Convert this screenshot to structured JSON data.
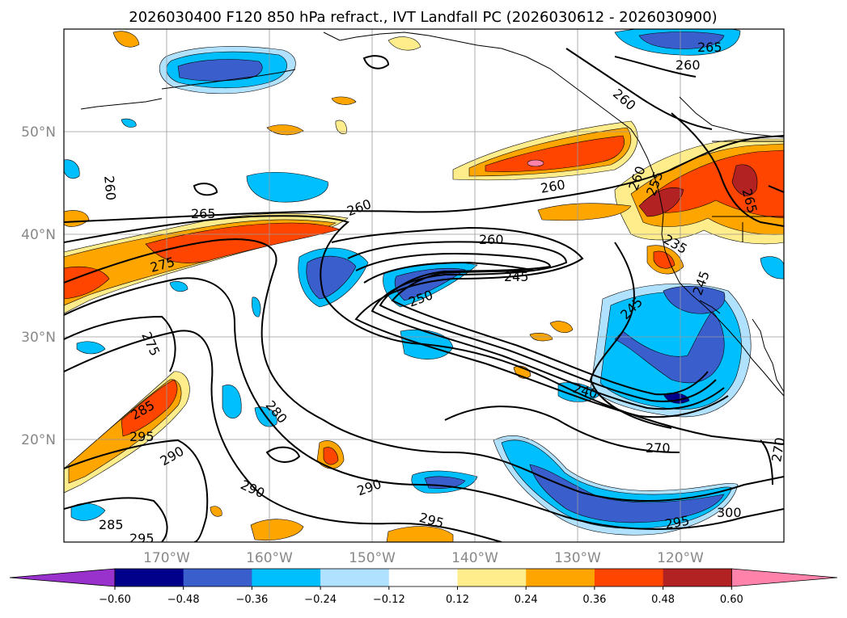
{
  "title": "2026030400 F120 850 hPa refract., IVT Landfall PC (2026030612 - 2026030900)",
  "map": {
    "lon_labels": [
      "170°W",
      "160°W",
      "150°W",
      "140°W",
      "130°W",
      "120°W"
    ],
    "lat_labels": [
      "50°N",
      "40°N",
      "30°N",
      "20°N"
    ],
    "contour_labels": [
      "265",
      "260",
      "260",
      "260",
      "260",
      "260",
      "265",
      "260",
      "260",
      "245",
      "250",
      "265",
      "275",
      "275",
      "285",
      "295",
      "290",
      "280",
      "290",
      "290",
      "295",
      "285",
      "295",
      "240",
      "245",
      "245",
      "270",
      "295",
      "300",
      "270",
      "255",
      "235"
    ]
  },
  "colorbar": {
    "ticks": [
      "−0.60",
      "−0.48",
      "−0.36",
      "−0.24",
      "−0.12",
      "0.12",
      "0.24",
      "0.36",
      "0.48",
      "0.60"
    ],
    "colors": [
      "#9932cc",
      "#00008b",
      "#3a5fcd",
      "#00bfff",
      "#b0e2ff",
      "#ffffff",
      "#ffec8b",
      "#ffa500",
      "#ff4500",
      "#b22222",
      "#ff82ab"
    ]
  }
}
